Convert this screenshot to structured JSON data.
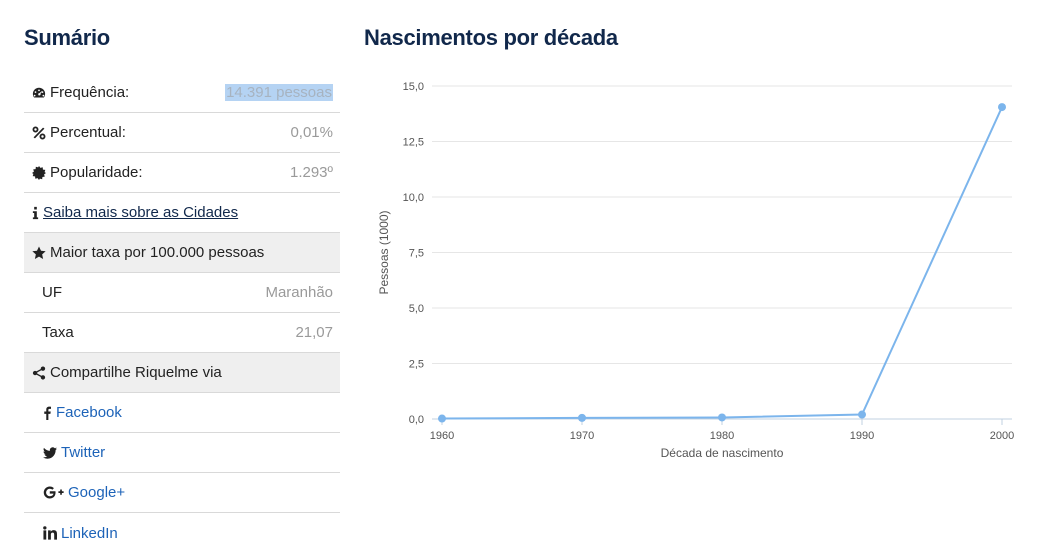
{
  "summary": {
    "title": "Sumário",
    "frequency_label": "Frequência:",
    "frequency_value": "14.391 pessoas",
    "percent_label": "Percentual:",
    "percent_value": "0,01%",
    "popularity_label": "Popularidade:",
    "popularity_value": "1.293º",
    "learn_more_link": "Saiba mais sobre as Cidades",
    "highest_rate_label": "Maior taxa por 100.000 pessoas",
    "uf_label": "UF",
    "uf_value": "Maranhão",
    "rate_label": "Taxa",
    "rate_value": "21,07",
    "share_label": "Compartilhe Riquelme via",
    "share_links": [
      "Facebook",
      "Twitter",
      "Google+",
      "LinkedIn"
    ]
  },
  "icons": {
    "frequency": "tachometer-icon",
    "percent": "percent-icon",
    "popularity": "certificate-icon",
    "info": "info-icon",
    "star": "star-icon",
    "share": "share-icon",
    "facebook": "facebook-icon",
    "twitter": "twitter-icon",
    "googleplus": "google-plus-icon",
    "linkedin": "linkedin-icon"
  },
  "colors": {
    "heading": "#11284b",
    "link": "#1d63b8",
    "series": "#7cb5ec",
    "highlight": "#b5d3f3"
  },
  "chart_data": {
    "type": "line",
    "title": "Nascimentos por década",
    "xlabel": "Década de nascimento",
    "ylabel": "Pessoas (1000)",
    "x": [
      "1960",
      "1970",
      "1980",
      "1990",
      "2000"
    ],
    "series": [
      {
        "values": [
          0.02,
          0.05,
          0.07,
          0.2,
          14.05
        ]
      }
    ],
    "ylim": [
      0,
      15
    ],
    "y_ticks": [
      "0,0",
      "2,5",
      "5,0",
      "7,5",
      "10,0",
      "12,5",
      "15,0"
    ],
    "grid": true,
    "legend": "none"
  }
}
